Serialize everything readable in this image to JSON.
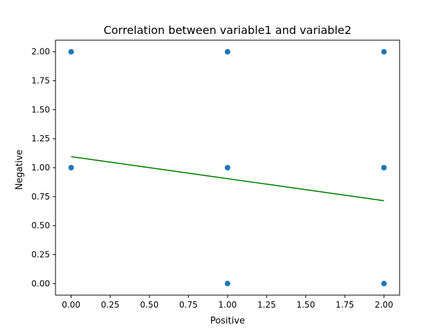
{
  "chart_data": {
    "type": "scatter",
    "title": "Correlation between variable1 and variable2",
    "xlabel": "Positive",
    "ylabel": "Negative",
    "xlim": [
      -0.1,
      2.1
    ],
    "ylim": [
      -0.1,
      2.1
    ],
    "x_ticks": [
      "0.00",
      "0.25",
      "0.50",
      "0.75",
      "1.00",
      "1.25",
      "1.50",
      "1.75",
      "2.00"
    ],
    "y_ticks": [
      "0.00",
      "0.25",
      "0.50",
      "0.75",
      "1.00",
      "1.25",
      "1.50",
      "1.75",
      "2.00"
    ],
    "grid": false,
    "points": [
      {
        "x": 0,
        "y": 2
      },
      {
        "x": 0,
        "y": 1
      },
      {
        "x": 1,
        "y": 2
      },
      {
        "x": 1,
        "y": 1
      },
      {
        "x": 1,
        "y": 0
      },
      {
        "x": 2,
        "y": 2
      },
      {
        "x": 2,
        "y": 1
      },
      {
        "x": 2,
        "y": 0
      }
    ],
    "fit_line": {
      "x": [
        0,
        2
      ],
      "y": [
        1.095,
        0.715
      ]
    },
    "colors": {
      "points": "#1f77b4",
      "fit_line": "#008000",
      "axes": "#000000"
    }
  }
}
